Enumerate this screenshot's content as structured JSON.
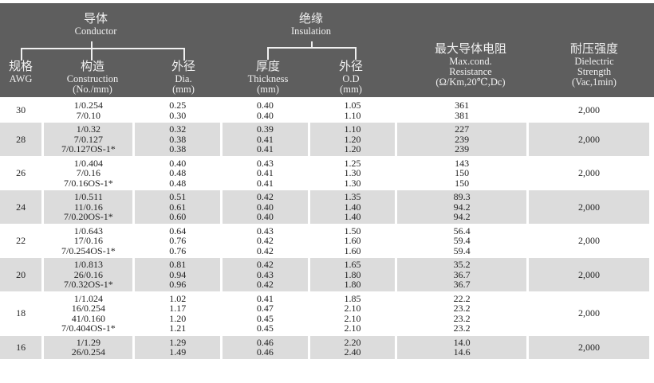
{
  "header": {
    "conductor": {
      "cn": "导体",
      "en": "Conductor"
    },
    "insulation": {
      "cn": "绝缘",
      "en": "Insulation"
    },
    "awg": {
      "cn": "规格",
      "en": "AWG"
    },
    "construction": {
      "cn": "构造",
      "en": "Construction",
      "unit": "(No./mm)"
    },
    "dia": {
      "cn": "外径",
      "en": "Dia.",
      "unit": "(mm)"
    },
    "thickness": {
      "cn": "厚度",
      "en": "Thickness",
      "unit": "(mm)"
    },
    "od": {
      "cn": "外径",
      "en": "O.D",
      "unit": "(mm)"
    },
    "resistance": {
      "cn": "最大导体电阻",
      "en1": "Max.cond.",
      "en2": "Resistance",
      "unit": "(Ω/Km,20℃,Dc)"
    },
    "dielectric": {
      "cn": "耐压强度",
      "en1": "Dielectric",
      "en2": "Strength",
      "unit": "(Vac,1min)"
    }
  },
  "rows": [
    {
      "awg": "30",
      "construction": [
        "1/0.254",
        "7/0.10"
      ],
      "dia": [
        "0.25",
        "0.30"
      ],
      "thickness": [
        "0.40",
        "0.40"
      ],
      "od": [
        "1.05",
        "1.10"
      ],
      "resistance": [
        "361",
        "381"
      ],
      "dielectric": "2,000"
    },
    {
      "awg": "28",
      "construction": [
        "1/0.32",
        "7/0.127",
        "7/0.127OS-1*"
      ],
      "dia": [
        "0.32",
        "0.38",
        "0.38"
      ],
      "thickness": [
        "0.39",
        "0.41",
        "0.41"
      ],
      "od": [
        "1.10",
        "1.20",
        "1.20"
      ],
      "resistance": [
        "227",
        "239",
        "239"
      ],
      "dielectric": "2,000"
    },
    {
      "awg": "26",
      "construction": [
        "1/0.404",
        "7/0.16",
        "7/0.16OS-1*"
      ],
      "dia": [
        "0.40",
        "0.48",
        "0.48"
      ],
      "thickness": [
        "0.43",
        "0.41",
        "0.41"
      ],
      "od": [
        "1.25",
        "1.30",
        "1.30"
      ],
      "resistance": [
        "143",
        "150",
        "150"
      ],
      "dielectric": "2,000"
    },
    {
      "awg": "24",
      "construction": [
        "1/0.511",
        "11/0.16",
        "7/0.20OS-1*"
      ],
      "dia": [
        "0.51",
        "0.61",
        "0.60"
      ],
      "thickness": [
        "0.42",
        "0.40",
        "0.40"
      ],
      "od": [
        "1.35",
        "1.40",
        "1.40"
      ],
      "resistance": [
        "89.3",
        "94.2",
        "94.2"
      ],
      "dielectric": "2,000"
    },
    {
      "awg": "22",
      "construction": [
        "1/0.643",
        "17/0.16",
        "7/0.254OS-1*"
      ],
      "dia": [
        "0.64",
        "0.76",
        "0.76"
      ],
      "thickness": [
        "0.43",
        "0.42",
        "0.42"
      ],
      "od": [
        "1.50",
        "1.60",
        "1.60"
      ],
      "resistance": [
        "56.4",
        "59.4",
        "59.4"
      ],
      "dielectric": "2,000"
    },
    {
      "awg": "20",
      "construction": [
        "1/0.813",
        "26/0.16",
        "7/0.32OS-1*"
      ],
      "dia": [
        "0.81",
        "0.94",
        "0.96"
      ],
      "thickness": [
        "0.42",
        "0.43",
        "0.42"
      ],
      "od": [
        "1.65",
        "1.80",
        "1.80"
      ],
      "resistance": [
        "35.2",
        "36.7",
        "36.7"
      ],
      "dielectric": "2,000"
    },
    {
      "awg": "18",
      "construction": [
        "1/1.024",
        "16/0.254",
        "41/0.160",
        "7/0.404OS-1*"
      ],
      "dia": [
        "1.02",
        "1.17",
        "1.20",
        "1.21"
      ],
      "thickness": [
        "0.41",
        "0.47",
        "0.45",
        "0.45"
      ],
      "od": [
        "1.85",
        "2.10",
        "2.10",
        "2.10"
      ],
      "resistance": [
        "22.2",
        "23.2",
        "23.2",
        "23.2"
      ],
      "dielectric": "2,000"
    },
    {
      "awg": "16",
      "construction": [
        "1/1.29",
        "26/0.254"
      ],
      "dia": [
        "1.29",
        "1.49"
      ],
      "thickness": [
        "0.46",
        "0.46"
      ],
      "od": [
        "2.20",
        "2.40"
      ],
      "resistance": [
        "14.0",
        "14.6"
      ],
      "dielectric": "2,000"
    }
  ]
}
